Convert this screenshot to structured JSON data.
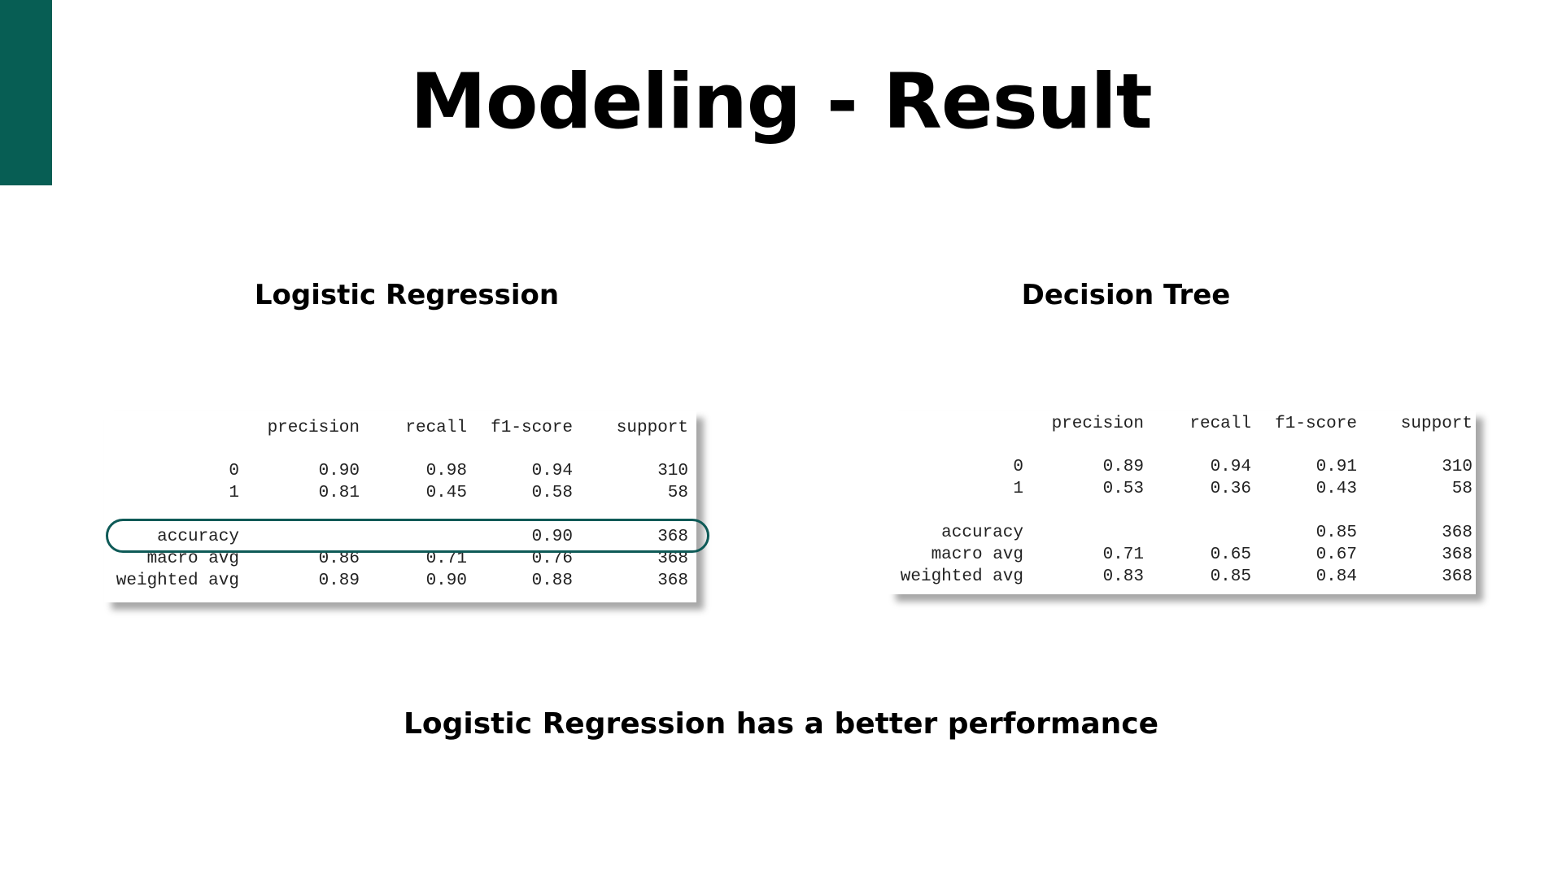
{
  "slide": {
    "title": "Modeling - Result",
    "conclusion": "Logistic Regression has a better performance",
    "accent_color": "#075e54",
    "highlight_color": "#0e5a57"
  },
  "models": {
    "left": {
      "name": "Logistic Regression",
      "report": {
        "headers": [
          "precision",
          "recall",
          "f1-score",
          "support"
        ],
        "rows": [
          {
            "label": "0",
            "precision": "0.90",
            "recall": "0.98",
            "f1": "0.94",
            "support": "310"
          },
          {
            "label": "1",
            "precision": "0.81",
            "recall": "0.45",
            "f1": "0.58",
            "support": "58"
          },
          {
            "label": "accuracy",
            "precision": "",
            "recall": "",
            "f1": "0.90",
            "support": "368"
          },
          {
            "label": "macro avg",
            "precision": "0.86",
            "recall": "0.71",
            "f1": "0.76",
            "support": "368"
          },
          {
            "label": "weighted avg",
            "precision": "0.89",
            "recall": "0.90",
            "f1": "0.88",
            "support": "368"
          }
        ]
      }
    },
    "right": {
      "name": "Decision Tree",
      "report": {
        "headers": [
          "precision",
          "recall",
          "f1-score",
          "support"
        ],
        "rows": [
          {
            "label": "0",
            "precision": "0.89",
            "recall": "0.94",
            "f1": "0.91",
            "support": "310"
          },
          {
            "label": "1",
            "precision": "0.53",
            "recall": "0.36",
            "f1": "0.43",
            "support": "58"
          },
          {
            "label": "accuracy",
            "precision": "",
            "recall": "",
            "f1": "0.85",
            "support": "368"
          },
          {
            "label": "macro avg",
            "precision": "0.71",
            "recall": "0.65",
            "f1": "0.67",
            "support": "368"
          },
          {
            "label": "weighted avg",
            "precision": "0.83",
            "recall": "0.85",
            "f1": "0.84",
            "support": "368"
          }
        ]
      }
    }
  }
}
